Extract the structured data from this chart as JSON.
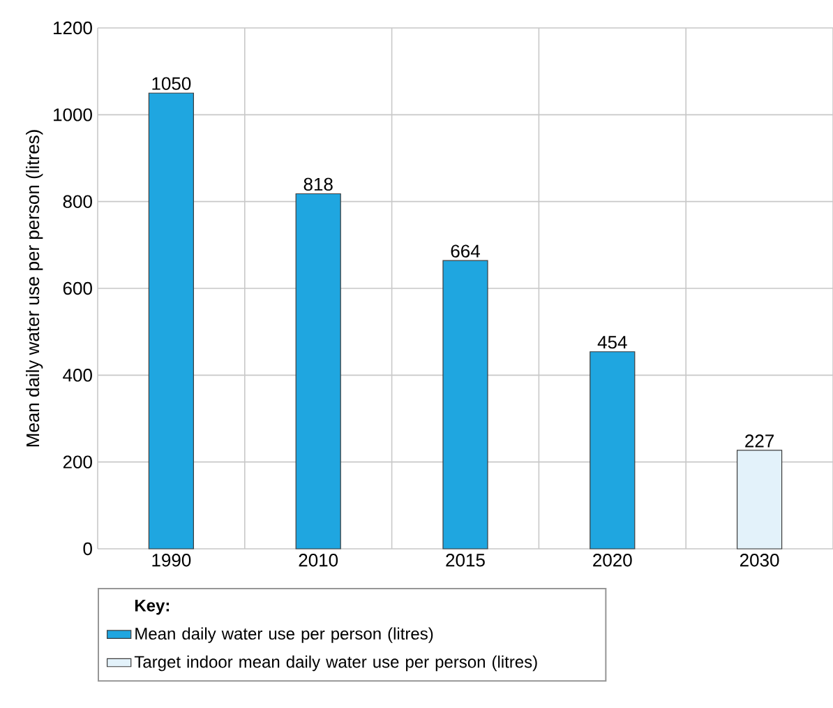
{
  "chart_data": {
    "type": "bar",
    "ylabel": "Mean daily water use per person (litres)",
    "legend_title": "Key:",
    "categories": [
      "1990",
      "2010",
      "2015",
      "2020",
      "2030"
    ],
    "series": [
      {
        "name": "Mean daily water use per person (litres)",
        "color": "#1fa6e0",
        "values": [
          1050,
          818,
          664,
          454,
          null
        ]
      },
      {
        "name": "Target indoor mean daily water use per person (litres)",
        "color": "#e3f2fa",
        "values": [
          null,
          null,
          null,
          null,
          227
        ]
      }
    ],
    "ylim": [
      0,
      1200
    ],
    "yticks": [
      0,
      200,
      400,
      600,
      800,
      1000,
      1200
    ],
    "grid": true,
    "legend": "bottom",
    "data_labels": true
  }
}
